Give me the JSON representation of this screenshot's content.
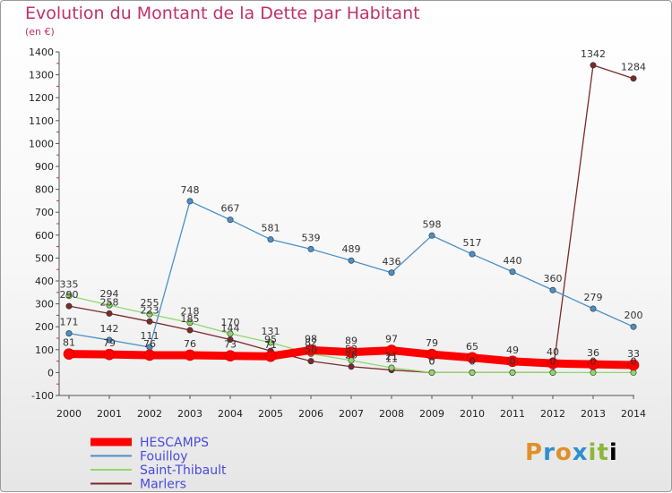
{
  "chart_data": {
    "type": "line",
    "title": "Evolution du Montant de la Dette par Habitant",
    "subtitle": "(en €)",
    "x": [
      "2000",
      "2001",
      "2002",
      "2003",
      "2004",
      "2005",
      "2006",
      "2007",
      "2008",
      "2009",
      "2010",
      "2011",
      "2012",
      "2013",
      "2014"
    ],
    "ylim": [
      -100,
      1400
    ],
    "yticks": [
      "-100",
      "0",
      "100",
      "200",
      "300",
      "400",
      "500",
      "600",
      "700",
      "800",
      "900",
      "1000",
      "1100",
      "1200",
      "1300",
      "1400"
    ],
    "series": [
      {
        "name": "HESCAMPS",
        "color": "#ff0000",
        "values": [
          81,
          79,
          76,
          76,
          73,
          71,
          98,
          89,
          97,
          79,
          65,
          49,
          40,
          36,
          33
        ],
        "labels": [
          "81",
          "79",
          "76",
          "76",
          "73",
          "71",
          "98",
          "89",
          "97",
          "79",
          "65",
          "49",
          "40",
          "36",
          "33"
        ]
      },
      {
        "name": "Fouilloy",
        "color": "#4a90c8",
        "values": [
          171,
          142,
          111,
          748,
          667,
          581,
          539,
          489,
          436,
          598,
          517,
          440,
          360,
          279,
          200
        ],
        "labels": [
          "171",
          "142",
          "111",
          "748",
          "667",
          "581",
          "539",
          "489",
          "436",
          "598",
          "517",
          "440",
          "360",
          "279",
          "200"
        ]
      },
      {
        "name": "Saint-Thibault",
        "color": "#8fd86a",
        "values": [
          335,
          294,
          255,
          218,
          170,
          131,
          82,
          53,
          21,
          0,
          0,
          0,
          0,
          0,
          0
        ],
        "labels": [
          "335",
          "294",
          "255",
          "218",
          "170",
          "131",
          "82",
          "53",
          "21",
          "0",
          "0",
          "0",
          "0",
          "0",
          "0"
        ]
      },
      {
        "name": "Marlers",
        "color": "#7a2a2a",
        "values": [
          290,
          258,
          223,
          185,
          144,
          95,
          50,
          26,
          11,
          0,
          0,
          0,
          0,
          1342,
          1284
        ],
        "labels": [
          "290",
          "258",
          "223",
          "185",
          "144",
          "95",
          "50",
          "26",
          "11",
          "0",
          "0",
          "0",
          "0",
          "1342",
          "1284"
        ]
      }
    ],
    "legend_placement": "bottom-left",
    "grid": false
  },
  "logo_text": [
    "P",
    "r",
    "o",
    "x",
    "i",
    "t",
    "i"
  ]
}
